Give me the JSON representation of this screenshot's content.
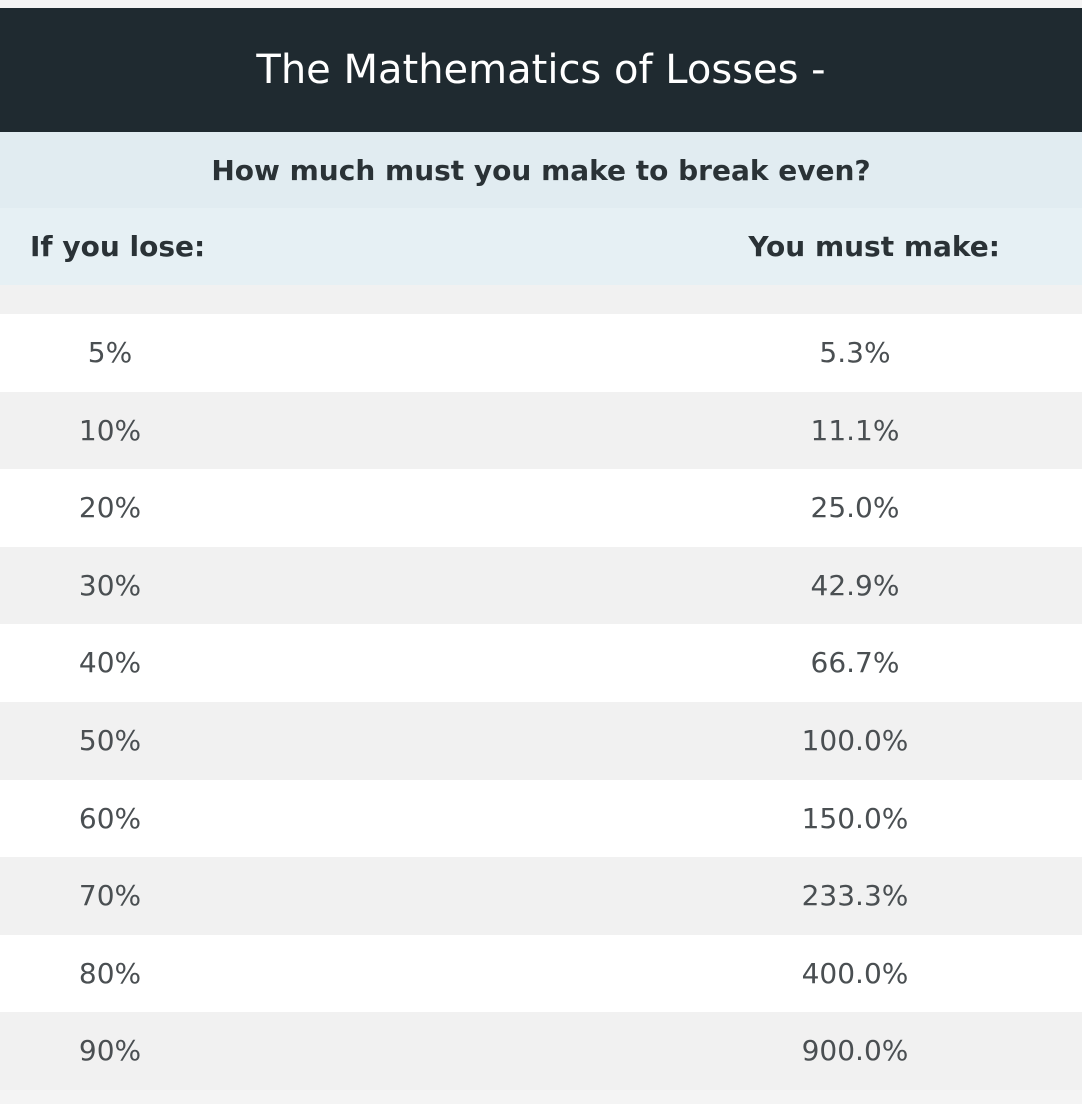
{
  "chart_data": {
    "type": "table",
    "title": "The Mathematics of Losses -",
    "subtitle": "How much must you make to break even?",
    "columns": [
      "If you lose:",
      "You must make:"
    ],
    "rows": [
      [
        "5%",
        "5.3%"
      ],
      [
        "10%",
        "11.1%"
      ],
      [
        "20%",
        "25.0%"
      ],
      [
        "30%",
        "42.9%"
      ],
      [
        "40%",
        "66.7%"
      ],
      [
        "50%",
        "100.0%"
      ],
      [
        "60%",
        "150.0%"
      ],
      [
        "70%",
        "233.3%"
      ],
      [
        "80%",
        "400.0%"
      ],
      [
        "90%",
        "900.0%"
      ]
    ]
  },
  "colors": {
    "header_bg": "#1f2a30",
    "subtitle_bg": "#e1ecf1",
    "row_alt": "#f1f1f1"
  }
}
